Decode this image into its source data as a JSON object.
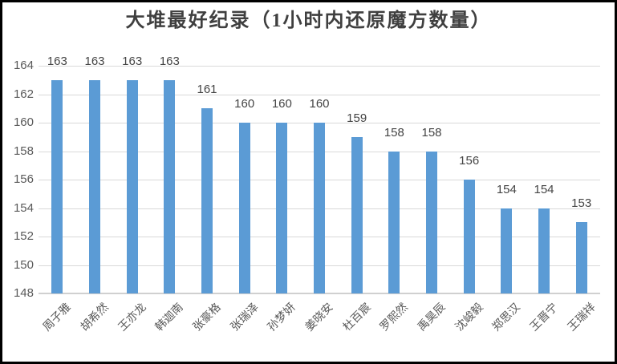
{
  "chart_data": {
    "type": "bar",
    "title": "大堆最好纪录（1小时内还原魔方数量）",
    "categories": [
      "周子雅",
      "胡希然",
      "王亦龙",
      "韩迦南",
      "张豪格",
      "张瑞泽",
      "孙梦妍",
      "姜晓安",
      "杜百宸",
      "罗熙然",
      "禹昊辰",
      "沈峻毅",
      "郑思汉",
      "王晋宁",
      "王瑞祥"
    ],
    "values": [
      163,
      163,
      163,
      163,
      161,
      160,
      160,
      160,
      159,
      158,
      158,
      156,
      154,
      154,
      153
    ],
    "xlabel": "",
    "ylabel": "",
    "ylim": [
      148,
      164
    ],
    "y_tick_step": 2,
    "y_ticks": [
      164,
      162,
      160,
      158,
      156,
      154,
      152,
      150,
      148
    ],
    "grid": true,
    "legend_position": "none",
    "bar_color": "#5b9bd5",
    "gridline_color": "#d9d9d9",
    "axis_line_color": "#d0d0d0",
    "text_color": "#595959",
    "data_label_color": "#444444",
    "title_color": "#3f3f3f",
    "frame_color": "#000000"
  }
}
